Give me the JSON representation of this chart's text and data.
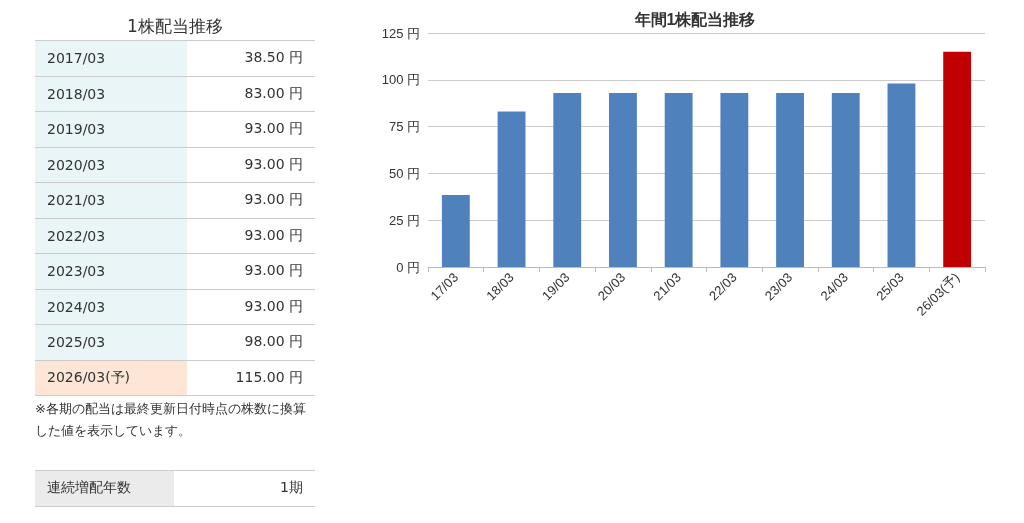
{
  "chart_data": [
    {
      "type": "other",
      "title": "1株配当推移",
      "categories": [
        "2017/03",
        "2018/03",
        "2019/03",
        "2020/03",
        "2021/03",
        "2022/03",
        "2023/03",
        "2024/03",
        "2025/03",
        "2026/03(予)"
      ],
      "values": [
        38.5,
        83,
        93,
        93,
        93,
        93,
        93,
        93,
        98,
        115
      ],
      "value_labels": [
        "38.50 円",
        "83.00 円",
        "93.00 円",
        "93.00 円",
        "93.00 円",
        "93.00 円",
        "93.00 円",
        "93.00 円",
        "98.00 円",
        "115.00 円"
      ],
      "annotations": [
        "※各期の配当は最終更新日付時点の株数に換算した値を表示しています。",
        "連続増配年数",
        "1期"
      ]
    },
    {
      "type": "bar",
      "title": "年間1株配当推移",
      "categories": [
        "17/03",
        "18/03",
        "19/03",
        "20/03",
        "21/03",
        "22/03",
        "23/03",
        "24/03",
        "25/03",
        "26/03(予)"
      ],
      "values": [
        38.5,
        83,
        93,
        93,
        93,
        93,
        93,
        93,
        98,
        115
      ],
      "colors": [
        "#4f81bd",
        "#4f81bd",
        "#4f81bd",
        "#4f81bd",
        "#4f81bd",
        "#4f81bd",
        "#4f81bd",
        "#4f81bd",
        "#4f81bd",
        "#c00000"
      ],
      "ylim": [
        0,
        125
      ],
      "yticks": [
        {
          "value": 0,
          "label": "0 円"
        },
        {
          "value": 25,
          "label": "25 円"
        },
        {
          "value": 50,
          "label": "50 円"
        },
        {
          "value": 75,
          "label": "75 円"
        },
        {
          "value": 100,
          "label": "100 円"
        },
        {
          "value": 125,
          "label": "125 円"
        }
      ],
      "grid": "y"
    }
  ]
}
